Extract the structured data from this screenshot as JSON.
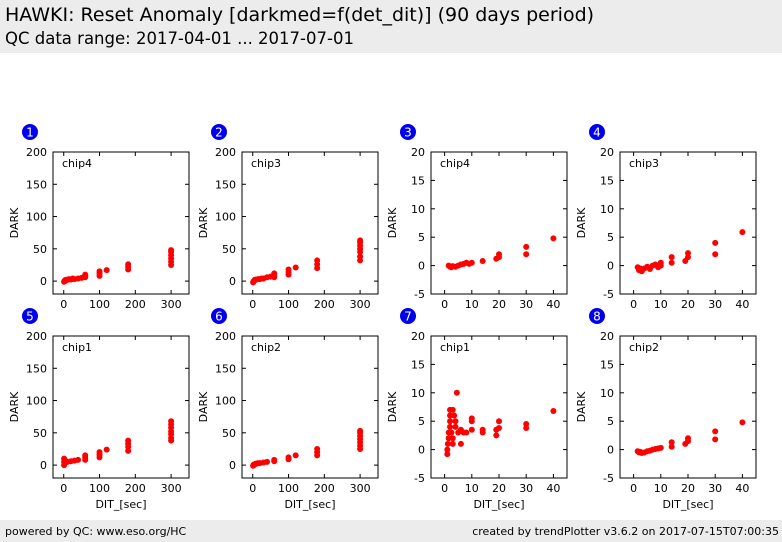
{
  "header": {
    "title": "HAWKI: Reset Anomaly [darkmed=f(det_dit)] (90 days period)",
    "subtitle": "QC data range: 2017-04-01 ... 2017-07-01"
  },
  "footer": {
    "left": "powered by QC: www.eso.org/HC",
    "right": "created by trendPlotter v3.6.2 on 2017-07-15T07:00:35"
  },
  "colors": {
    "points": "#ff0000",
    "badge": "#0000ee",
    "header_bg": "#ececec"
  },
  "chart_data": [
    {
      "type": "scatter",
      "number": "1",
      "label": "chip4",
      "xlabel": "",
      "ylabel": "DARK",
      "xlim": [
        -30,
        350
      ],
      "ylim": [
        -20,
        200
      ],
      "xticks": [
        0,
        100,
        200,
        300
      ],
      "yticks": [
        0,
        50,
        100,
        150,
        200
      ],
      "points": [
        [
          1,
          -1
        ],
        [
          2,
          0
        ],
        [
          3,
          1
        ],
        [
          5,
          0.5
        ],
        [
          6,
          2
        ],
        [
          8,
          1.5
        ],
        [
          10,
          2
        ],
        [
          15,
          3
        ],
        [
          20,
          2.5
        ],
        [
          25,
          4
        ],
        [
          30,
          3
        ],
        [
          40,
          4
        ],
        [
          50,
          5
        ],
        [
          60,
          6
        ],
        [
          60,
          8
        ],
        [
          60,
          10
        ],
        [
          100,
          8
        ],
        [
          100,
          12
        ],
        [
          100,
          15
        ],
        [
          120,
          17
        ],
        [
          180,
          18
        ],
        [
          180,
          22
        ],
        [
          180,
          26
        ],
        [
          300,
          25
        ],
        [
          300,
          30
        ],
        [
          300,
          35
        ],
        [
          300,
          40
        ],
        [
          300,
          45
        ],
        [
          300,
          48
        ]
      ]
    },
    {
      "type": "scatter",
      "number": "2",
      "label": "chip3",
      "xlabel": "",
      "ylabel": "DARK",
      "xlim": [
        -30,
        350
      ],
      "ylim": [
        -20,
        200
      ],
      "xticks": [
        0,
        100,
        200,
        300
      ],
      "yticks": [
        0,
        50,
        100,
        150,
        200
      ],
      "points": [
        [
          1,
          -2
        ],
        [
          2,
          -1
        ],
        [
          3,
          0
        ],
        [
          5,
          1
        ],
        [
          6,
          2
        ],
        [
          8,
          2
        ],
        [
          10,
          2.5
        ],
        [
          15,
          3
        ],
        [
          20,
          3
        ],
        [
          25,
          4
        ],
        [
          30,
          4
        ],
        [
          40,
          6
        ],
        [
          50,
          7
        ],
        [
          60,
          6
        ],
        [
          60,
          9
        ],
        [
          60,
          12
        ],
        [
          100,
          10
        ],
        [
          100,
          14
        ],
        [
          100,
          18
        ],
        [
          120,
          21
        ],
        [
          180,
          20
        ],
        [
          180,
          26
        ],
        [
          180,
          32
        ],
        [
          300,
          32
        ],
        [
          300,
          38
        ],
        [
          300,
          45
        ],
        [
          300,
          50
        ],
        [
          300,
          55
        ],
        [
          300,
          60
        ],
        [
          300,
          63
        ]
      ]
    },
    {
      "type": "scatter",
      "number": "3",
      "label": "chip4",
      "xlabel": "",
      "ylabel": "DARK",
      "xlim": [
        -5,
        45
      ],
      "ylim": [
        -5,
        20
      ],
      "xticks": [
        0,
        10,
        20,
        30,
        40
      ],
      "yticks": [
        -5,
        0,
        5,
        10,
        15,
        20
      ],
      "points": [
        [
          1.5,
          0
        ],
        [
          2,
          -0.2
        ],
        [
          2.5,
          -0.3
        ],
        [
          3,
          -0.1
        ],
        [
          4,
          -0.2
        ],
        [
          5,
          0
        ],
        [
          6,
          0.2
        ],
        [
          7,
          0.3
        ],
        [
          8,
          0.5
        ],
        [
          9,
          0.3
        ],
        [
          10,
          0.5
        ],
        [
          14,
          0.8
        ],
        [
          19,
          1.2
        ],
        [
          20,
          1.5
        ],
        [
          20,
          2
        ],
        [
          30,
          2
        ],
        [
          30,
          3.3
        ],
        [
          40,
          4.8
        ]
      ]
    },
    {
      "type": "scatter",
      "number": "4",
      "label": "chip3",
      "xlabel": "",
      "ylabel": "DARK",
      "xlim": [
        -5,
        45
      ],
      "ylim": [
        -5,
        20
      ],
      "xticks": [
        0,
        10,
        20,
        30,
        40
      ],
      "yticks": [
        -5,
        0,
        5,
        10,
        15,
        20
      ],
      "points": [
        [
          1.5,
          -0.3
        ],
        [
          2,
          -0.8
        ],
        [
          2.5,
          -0.5
        ],
        [
          3,
          -1
        ],
        [
          4,
          -0.5
        ],
        [
          5,
          -0.2
        ],
        [
          6,
          -0.6
        ],
        [
          7,
          0
        ],
        [
          8,
          0.2
        ],
        [
          9,
          -0.3
        ],
        [
          10,
          0
        ],
        [
          10,
          0.5
        ],
        [
          14,
          0.5
        ],
        [
          14,
          1.5
        ],
        [
          19,
          0.8
        ],
        [
          20,
          1.5
        ],
        [
          20,
          2.2
        ],
        [
          30,
          2
        ],
        [
          30,
          4
        ],
        [
          40,
          5.9
        ]
      ]
    },
    {
      "type": "scatter",
      "number": "5",
      "label": "chip1",
      "xlabel": "DIT_[sec]",
      "ylabel": "DARK",
      "xlim": [
        -30,
        350
      ],
      "ylim": [
        -20,
        200
      ],
      "xticks": [
        0,
        100,
        200,
        300
      ],
      "yticks": [
        0,
        50,
        100,
        150,
        200
      ],
      "points": [
        [
          1,
          0
        ],
        [
          1,
          5
        ],
        [
          1,
          10
        ],
        [
          2,
          2
        ],
        [
          3,
          8
        ],
        [
          5,
          4
        ],
        [
          10,
          5
        ],
        [
          20,
          6
        ],
        [
          30,
          7
        ],
        [
          40,
          8
        ],
        [
          60,
          8
        ],
        [
          60,
          12
        ],
        [
          60,
          15
        ],
        [
          100,
          12
        ],
        [
          100,
          16
        ],
        [
          100,
          20
        ],
        [
          120,
          24
        ],
        [
          180,
          22
        ],
        [
          180,
          28
        ],
        [
          180,
          33
        ],
        [
          180,
          38
        ],
        [
          300,
          38
        ],
        [
          300,
          42
        ],
        [
          300,
          48
        ],
        [
          300,
          52
        ],
        [
          300,
          58
        ],
        [
          300,
          63
        ],
        [
          300,
          68
        ]
      ]
    },
    {
      "type": "scatter",
      "number": "6",
      "label": "chip2",
      "xlabel": "DIT_[sec]",
      "ylabel": "DARK",
      "xlim": [
        -30,
        350
      ],
      "ylim": [
        -20,
        200
      ],
      "xticks": [
        0,
        100,
        200,
        300
      ],
      "yticks": [
        0,
        50,
        100,
        150,
        200
      ],
      "points": [
        [
          1,
          -1
        ],
        [
          2,
          0
        ],
        [
          3,
          1
        ],
        [
          5,
          1
        ],
        [
          8,
          2
        ],
        [
          10,
          2
        ],
        [
          15,
          3
        ],
        [
          20,
          3
        ],
        [
          30,
          4
        ],
        [
          40,
          5
        ],
        [
          60,
          6
        ],
        [
          60,
          8
        ],
        [
          100,
          9
        ],
        [
          100,
          12
        ],
        [
          120,
          15
        ],
        [
          180,
          15
        ],
        [
          180,
          20
        ],
        [
          180,
          25
        ],
        [
          300,
          25
        ],
        [
          300,
          30
        ],
        [
          300,
          35
        ],
        [
          300,
          40
        ],
        [
          300,
          45
        ],
        [
          300,
          50
        ],
        [
          300,
          53
        ]
      ]
    },
    {
      "type": "scatter",
      "number": "7",
      "label": "chip1",
      "xlabel": "DIT_[sec]",
      "ylabel": "DARK",
      "xlim": [
        -5,
        45
      ],
      "ylim": [
        -5,
        20
      ],
      "xticks": [
        0,
        10,
        20,
        30,
        40
      ],
      "yticks": [
        -5,
        0,
        5,
        10,
        15,
        20
      ],
      "points": [
        [
          1,
          -0.8
        ],
        [
          1,
          0
        ],
        [
          1.2,
          1
        ],
        [
          1.5,
          2
        ],
        [
          1.5,
          3
        ],
        [
          2,
          4
        ],
        [
          2,
          5
        ],
        [
          2,
          6
        ],
        [
          2,
          7
        ],
        [
          2.5,
          3
        ],
        [
          3,
          7
        ],
        [
          3,
          1
        ],
        [
          3,
          2
        ],
        [
          3.5,
          6
        ],
        [
          4,
          4
        ],
        [
          4,
          5
        ],
        [
          4.5,
          10
        ],
        [
          5,
          3
        ],
        [
          6,
          1
        ],
        [
          6,
          3.5
        ],
        [
          7,
          3
        ],
        [
          8,
          3
        ],
        [
          10,
          3.5
        ],
        [
          10,
          5
        ],
        [
          10,
          5.5
        ],
        [
          14,
          3
        ],
        [
          14,
          3.5
        ],
        [
          19,
          2.5
        ],
        [
          19,
          3.5
        ],
        [
          20,
          3.8
        ],
        [
          20,
          5
        ],
        [
          30,
          3.8
        ],
        [
          30,
          4.5
        ],
        [
          40,
          6.8
        ]
      ]
    },
    {
      "type": "scatter",
      "number": "8",
      "label": "chip2",
      "xlabel": "DIT_[sec]",
      "ylabel": "DARK",
      "xlim": [
        -5,
        45
      ],
      "ylim": [
        -5,
        20
      ],
      "xticks": [
        0,
        10,
        20,
        30,
        40
      ],
      "yticks": [
        -5,
        0,
        5,
        10,
        15,
        20
      ],
      "points": [
        [
          1.5,
          -0.3
        ],
        [
          2,
          -0.5
        ],
        [
          2.5,
          -0.4
        ],
        [
          3,
          -0.6
        ],
        [
          4,
          -0.5
        ],
        [
          5,
          -0.3
        ],
        [
          6,
          -0.2
        ],
        [
          7,
          0
        ],
        [
          8,
          0.1
        ],
        [
          9,
          0.2
        ],
        [
          10,
          0.3
        ],
        [
          14,
          0.5
        ],
        [
          14,
          1.3
        ],
        [
          19,
          1
        ],
        [
          20,
          1.5
        ],
        [
          20,
          2
        ],
        [
          30,
          1.8
        ],
        [
          30,
          3.2
        ],
        [
          40,
          4.8
        ]
      ]
    }
  ]
}
